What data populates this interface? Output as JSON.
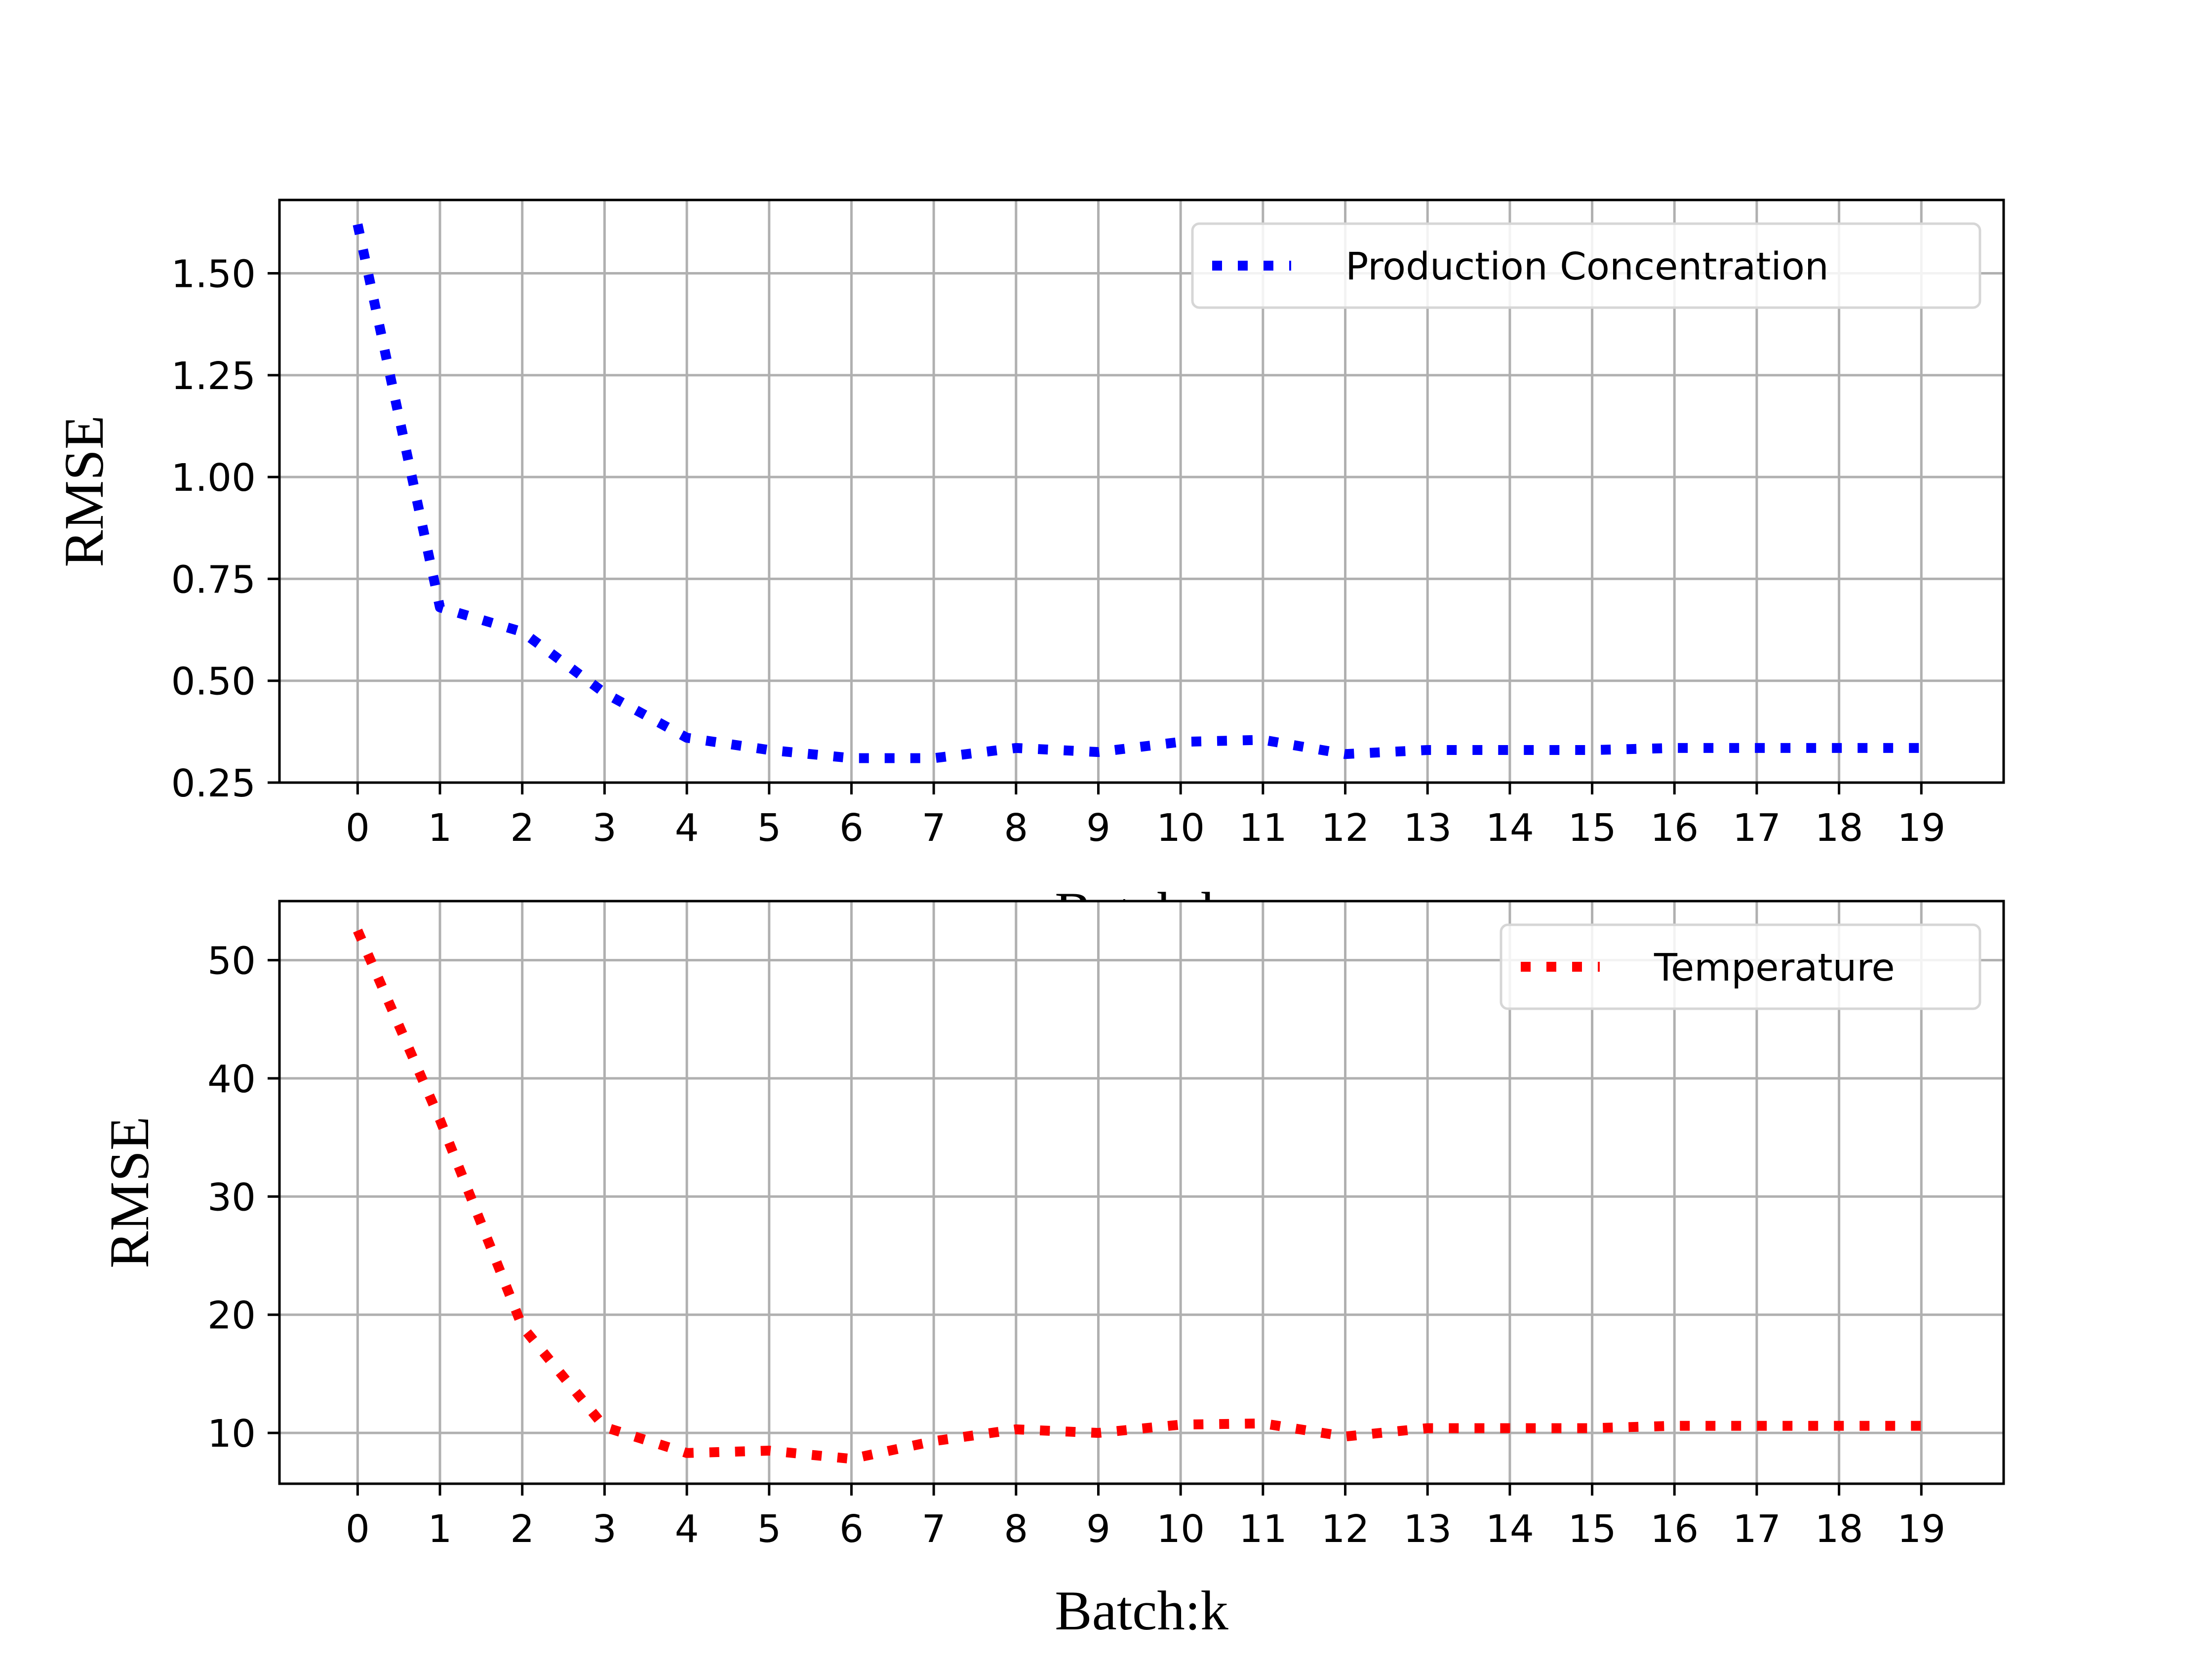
{
  "chart_data": [
    {
      "type": "line",
      "xlabel": "Batch:k",
      "ylabel": "RMSE",
      "x": [
        0,
        1,
        2,
        3,
        4,
        5,
        6,
        7,
        8,
        9,
        10,
        11,
        12,
        13,
        14,
        15,
        16,
        17,
        18,
        19
      ],
      "series": [
        {
          "name": "Production Concentration",
          "values": [
            1.62,
            0.68,
            0.62,
            0.47,
            0.36,
            0.33,
            0.31,
            0.31,
            0.335,
            0.325,
            0.35,
            0.355,
            0.32,
            0.33,
            0.33,
            0.33,
            0.335,
            0.335,
            0.335,
            0.335
          ],
          "color": "#0000ff",
          "style": "dotted"
        }
      ],
      "xticks": [
        "0",
        "1",
        "2",
        "3",
        "4",
        "5",
        "6",
        "7",
        "8",
        "9",
        "10",
        "11",
        "12",
        "13",
        "14",
        "15",
        "16",
        "17",
        "18",
        "19"
      ],
      "yticks": [
        0.25,
        0.5,
        0.75,
        1.0,
        1.25,
        1.5
      ],
      "ytick_labels": [
        "0.25",
        "0.50",
        "0.75",
        "1.00",
        "1.25",
        "1.50"
      ],
      "xlim": [
        -0.95,
        20
      ],
      "ylim": [
        0.25,
        1.68
      ],
      "grid": true,
      "legend_position": "top-right"
    },
    {
      "type": "line",
      "xlabel": "Batch:k",
      "ylabel": "RMSE",
      "x": [
        0,
        1,
        2,
        3,
        4,
        5,
        6,
        7,
        8,
        9,
        10,
        11,
        12,
        13,
        14,
        15,
        16,
        17,
        18,
        19
      ],
      "series": [
        {
          "name": "Temperature",
          "values": [
            52.5,
            36.5,
            19,
            10.5,
            8.3,
            8.5,
            7.8,
            9.3,
            10.3,
            10,
            10.7,
            10.8,
            9.7,
            10.4,
            10.4,
            10.4,
            10.6,
            10.6,
            10.6,
            10.6
          ],
          "color": "#ff0000",
          "style": "dotted"
        }
      ],
      "xticks": [
        "0",
        "1",
        "2",
        "3",
        "4",
        "5",
        "6",
        "7",
        "8",
        "9",
        "10",
        "11",
        "12",
        "13",
        "14",
        "15",
        "16",
        "17",
        "18",
        "19"
      ],
      "yticks": [
        10,
        20,
        30,
        40,
        50
      ],
      "ytick_labels": [
        "10",
        "20",
        "30",
        "40",
        "50"
      ],
      "xlim": [
        -0.95,
        20
      ],
      "ylim": [
        5.7,
        55
      ],
      "grid": true,
      "legend_position": "top-right"
    }
  ]
}
